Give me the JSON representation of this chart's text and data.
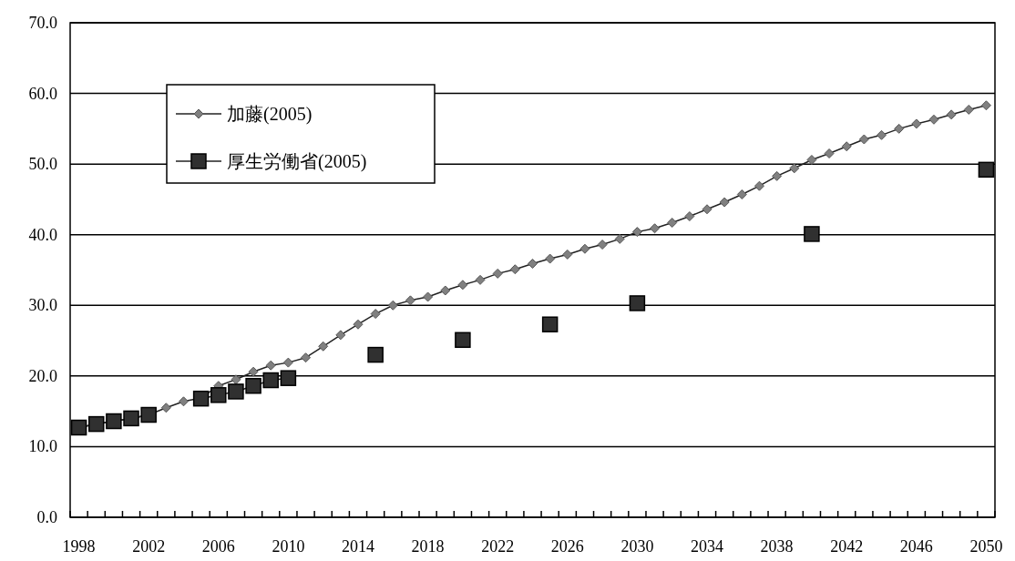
{
  "chart_data": {
    "type": "line",
    "categories": [
      "1998",
      null,
      null,
      null,
      "2002",
      null,
      null,
      null,
      "2006",
      null,
      null,
      null,
      "2010",
      null,
      null,
      null,
      "2014",
      null,
      null,
      null,
      "2018",
      null,
      null,
      null,
      "2022",
      null,
      null,
      null,
      "2026",
      null,
      null,
      null,
      "2030",
      null,
      null,
      null,
      "2034",
      null,
      null,
      null,
      "2038",
      null,
      null,
      null,
      "2042",
      null,
      null,
      null,
      "2046",
      null,
      null,
      null,
      "2050"
    ],
    "series": [
      {
        "name": "加藤(2005)",
        "color": "#808080",
        "marker": "diamond",
        "values": [
          12.7,
          13.2,
          13.6,
          14.0,
          14.5,
          15.5,
          16.4,
          16.9,
          18.6,
          19.5,
          20.6,
          21.5,
          21.9,
          22.6,
          24.2,
          25.8,
          27.3,
          28.8,
          30.0,
          30.7,
          31.2,
          32.1,
          32.9,
          33.6,
          34.5,
          35.1,
          35.9,
          36.6,
          37.2,
          38.0,
          38.6,
          39.4,
          40.4,
          40.9,
          41.7,
          42.6,
          43.6,
          44.6,
          45.7,
          46.9,
          48.3,
          49.4,
          50.6,
          51.5,
          52.5,
          53.5,
          54.1,
          55.0,
          55.7,
          56.3,
          57.0,
          57.7,
          58.3
        ]
      },
      {
        "name": "厚生労働省(2005)",
        "color": "#303030",
        "marker": "square",
        "values": [
          12.7,
          13.2,
          13.6,
          14.0,
          14.5,
          null,
          null,
          16.8,
          17.3,
          17.8,
          18.6,
          19.4,
          19.7,
          null,
          null,
          null,
          null,
          23.0,
          null,
          null,
          null,
          null,
          25.1,
          null,
          null,
          null,
          null,
          27.3,
          null,
          null,
          null,
          null,
          30.3,
          null,
          null,
          null,
          null,
          null,
          null,
          null,
          null,
          null,
          40.1,
          null,
          null,
          null,
          null,
          null,
          null,
          null,
          null,
          null,
          49.2
        ]
      }
    ],
    "ylim": [
      0,
      70
    ],
    "yticks": [
      {
        "value": 0,
        "label": "0.0"
      },
      {
        "value": 10,
        "label": "10.0"
      },
      {
        "value": 20,
        "label": "20.0"
      },
      {
        "value": 30,
        "label": "30.0"
      },
      {
        "value": 40,
        "label": "40.0"
      },
      {
        "value": 50,
        "label": "50.0"
      },
      {
        "value": 60,
        "label": "60.0"
      },
      {
        "value": 70,
        "label": "70.0"
      }
    ],
    "grid": "y",
    "legend": "top left",
    "line_style": "solid"
  }
}
